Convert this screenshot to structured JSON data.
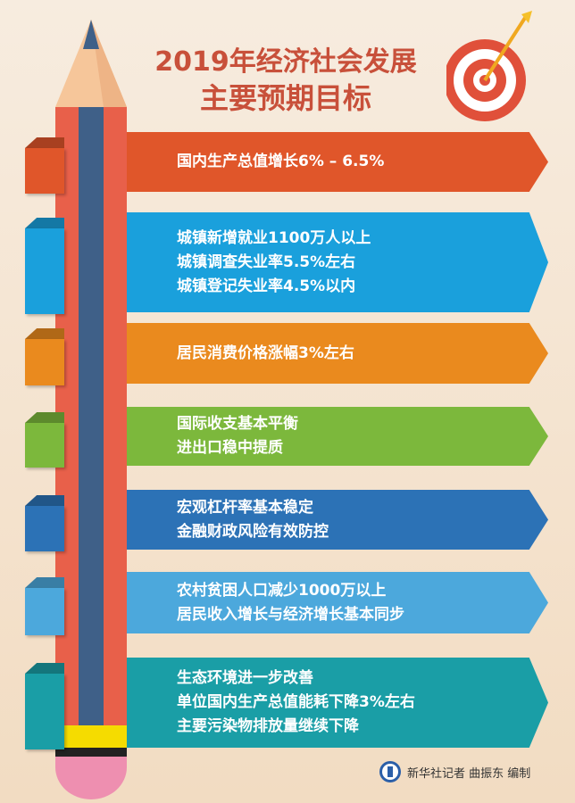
{
  "title": {
    "line1": "2019年经济社会发展",
    "line2": "主要预期目标"
  },
  "colors": {
    "title": "#c8503a",
    "pencil_body": "#e8604a",
    "pencil_stripe": "#3f6088",
    "pencil_wood": "#f6c69a",
    "eraser": "#ee8fb0",
    "band": "#f5dc00"
  },
  "icons": {
    "target": "target-with-arrow-icon",
    "logo": "xinhua-logo-icon"
  },
  "goals": [
    {
      "color": "#e0562a",
      "lines": [
        "国内生产总值增长6% – 6.5%"
      ]
    },
    {
      "color": "#1aa0dc",
      "lines": [
        "城镇新增就业1100万人以上",
        "城镇调查失业率5.5%左右",
        "城镇登记失业率4.5%以内"
      ]
    },
    {
      "color": "#ea8a1e",
      "lines": [
        "居民消费价格涨幅3%左右"
      ]
    },
    {
      "color": "#7cb83c",
      "lines": [
        "国际收支基本平衡",
        "进出口稳中提质"
      ]
    },
    {
      "color": "#2c72b6",
      "lines": [
        "宏观杠杆率基本稳定",
        "金融财政风险有效防控"
      ]
    },
    {
      "color": "#4ca8dc",
      "lines": [
        "农村贫困人口减少1000万以上",
        "居民收入增长与经济增长基本同步"
      ]
    },
    {
      "color": "#1a9ea6",
      "lines": [
        "生态环境进一步改善",
        "单位国内生产总值能耗下降3%左右",
        "主要污染物排放量继续下降"
      ]
    }
  ],
  "credit": "新华社记者 曲振东 编制"
}
